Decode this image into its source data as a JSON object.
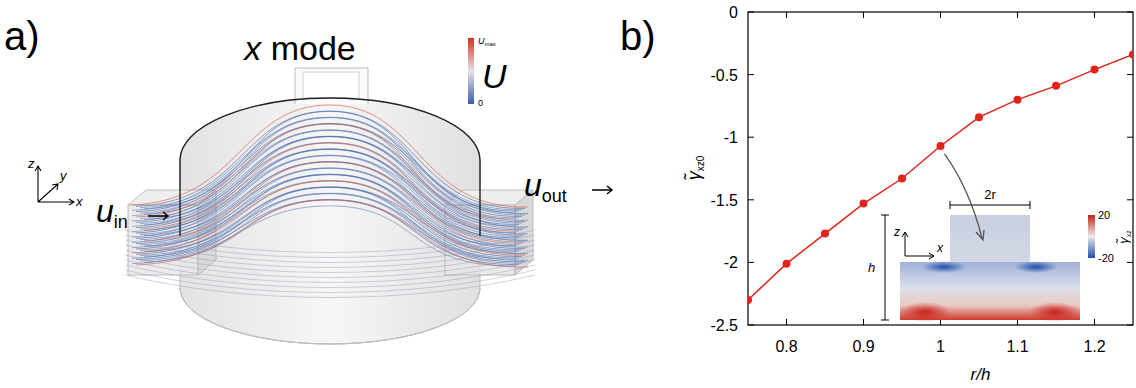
{
  "panel_a": {
    "label": "a)",
    "mode_label": {
      "symbol": "x",
      "text": "mode"
    },
    "inlet": {
      "symbol": "u",
      "subscript": "in"
    },
    "outlet": {
      "symbol": "u",
      "subscript": "out"
    },
    "axes": [
      "z",
      "y",
      "x"
    ],
    "colorbar": {
      "symbol": "U",
      "max_label": {
        "symbol": "U",
        "subscript": "max"
      },
      "min_label": 0
    }
  },
  "chart_data": {
    "type": "line",
    "panel_label": "b)",
    "x_label": "r/h",
    "y_label": {
      "symbol": "γ̃",
      "subscript": "xz0"
    },
    "x": [
      0.75,
      0.8,
      0.85,
      0.9,
      0.95,
      1.0,
      1.05,
      1.1,
      1.15,
      1.2,
      1.25
    ],
    "series": [
      {
        "color": "#e2231a",
        "marker": "circle",
        "values": [
          -2.3,
          -2.01,
          -1.77,
          -1.53,
          -1.33,
          -1.07,
          -0.84,
          -0.7,
          -0.59,
          -0.46,
          -0.34
        ]
      }
    ],
    "xlim": [
      0.75,
      1.25
    ],
    "xticks": [
      0.8,
      0.9,
      1,
      1.1,
      1.2
    ],
    "ylim": [
      -2.5,
      0
    ],
    "yticks": [
      -2.5,
      -2,
      -1.5,
      -1,
      -0.5,
      0
    ],
    "grid": false,
    "inset": {
      "width_label": "2r",
      "height_label": "h",
      "axes": [
        "z",
        "x"
      ],
      "colorbar": {
        "label": {
          "symbol": "γ̃",
          "subscript": "xz"
        },
        "range": [
          -20,
          20
        ],
        "ticks": [
          20,
          -20
        ]
      }
    }
  }
}
